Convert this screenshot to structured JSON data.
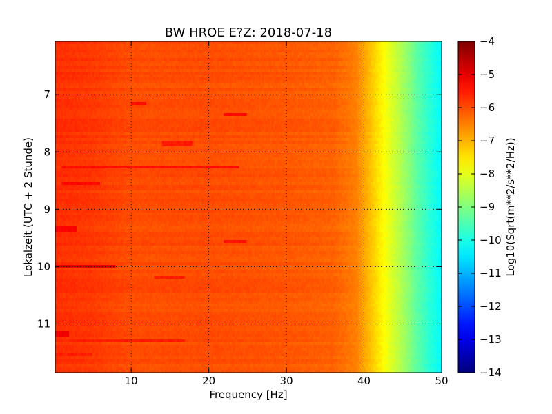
{
  "chart_data": {
    "type": "heatmap",
    "title": "BW HROE E?Z: 2018-07-18",
    "xlabel": "Frequency [Hz]",
    "ylabel": "Lokalzeit (UTC + 2 Stunde)",
    "xlim": [
      0.2,
      50
    ],
    "ylim": [
      11.85,
      6.07
    ],
    "x_ticks": [
      10,
      20,
      30,
      40,
      50
    ],
    "x_tick_labels": [
      "10",
      "20",
      "30",
      "40",
      "50"
    ],
    "y_ticks": [
      7,
      8,
      9,
      10,
      11
    ],
    "y_tick_labels": [
      "7",
      "8",
      "9",
      "10",
      "11"
    ],
    "grid": true,
    "colorbar": {
      "label": "Log10(Sqrt(m**2/s**2/Hz))",
      "range": [
        -14,
        -4
      ],
      "ticks": [
        -4,
        -5,
        -6,
        -7,
        -8,
        -9,
        -10,
        -11,
        -12,
        -13,
        -14
      ],
      "tick_labels": [
        "−4",
        "−5",
        "−6",
        "−7",
        "−8",
        "−9",
        "−10",
        "−11",
        "−12",
        "−13",
        "−14"
      ],
      "colormap": "jet"
    },
    "frequency_profile": [
      {
        "freq": 0.2,
        "value": -5.7
      },
      {
        "freq": 5,
        "value": -5.8
      },
      {
        "freq": 10,
        "value": -6.0
      },
      {
        "freq": 20,
        "value": -6.0
      },
      {
        "freq": 30,
        "value": -6.1
      },
      {
        "freq": 36,
        "value": -6.2
      },
      {
        "freq": 39,
        "value": -6.5
      },
      {
        "freq": 41,
        "value": -7.2
      },
      {
        "freq": 43,
        "value": -7.9
      },
      {
        "freq": 45,
        "value": -8.6
      },
      {
        "freq": 47,
        "value": -9.4
      },
      {
        "freq": 49,
        "value": -10.0
      },
      {
        "freq": 50,
        "value": -10.3
      }
    ],
    "bands": [
      {
        "time": 7.35,
        "freq_start": 22,
        "freq_end": 25,
        "value": -5.3
      },
      {
        "time": 7.15,
        "freq_start": 10,
        "freq_end": 12,
        "value": -5.4
      },
      {
        "time": 7.85,
        "freq_start": 14,
        "freq_end": 18,
        "value": -5.5
      },
      {
        "time": 8.25,
        "freq_start": 1,
        "freq_end": 24,
        "value": -5.4
      },
      {
        "time": 8.55,
        "freq_start": 1,
        "freq_end": 6,
        "value": -5.3
      },
      {
        "time": 9.35,
        "freq_start": 0.2,
        "freq_end": 3,
        "value": -5.2
      },
      {
        "time": 9.55,
        "freq_start": 22,
        "freq_end": 25,
        "value": -5.4
      },
      {
        "time": 9.98,
        "freq_start": 0.2,
        "freq_end": 8,
        "value": -5.0
      },
      {
        "time": 10.2,
        "freq_start": 13,
        "freq_end": 17,
        "value": -5.5
      },
      {
        "time": 11.18,
        "freq_start": 0.2,
        "freq_end": 2,
        "value": -5.1
      },
      {
        "time": 11.28,
        "freq_start": 2,
        "freq_end": 17,
        "value": -5.5
      },
      {
        "time": 11.55,
        "freq_start": 0.2,
        "freq_end": 5,
        "value": -5.5
      }
    ]
  }
}
